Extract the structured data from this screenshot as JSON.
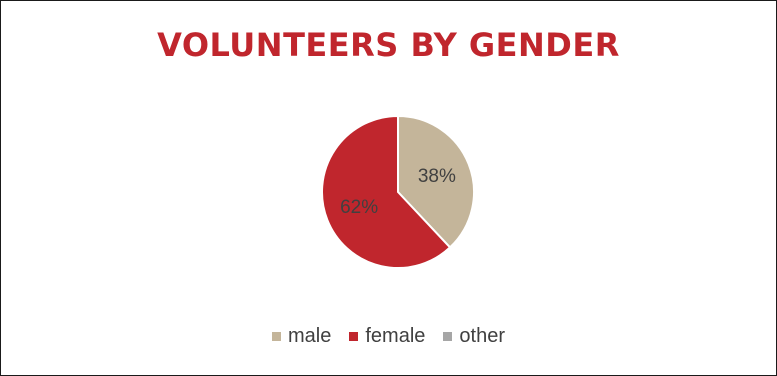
{
  "chart_data": {
    "type": "pie",
    "title": "VOLUNTEERS BY GENDER",
    "categories": [
      "male",
      "female",
      "other"
    ],
    "values": [
      38,
      62,
      0
    ],
    "labels": [
      "38%",
      "62%",
      ""
    ],
    "colors": [
      "#c4b59a",
      "#c0262d",
      "#a6a6a6"
    ],
    "legend_position": "bottom"
  }
}
